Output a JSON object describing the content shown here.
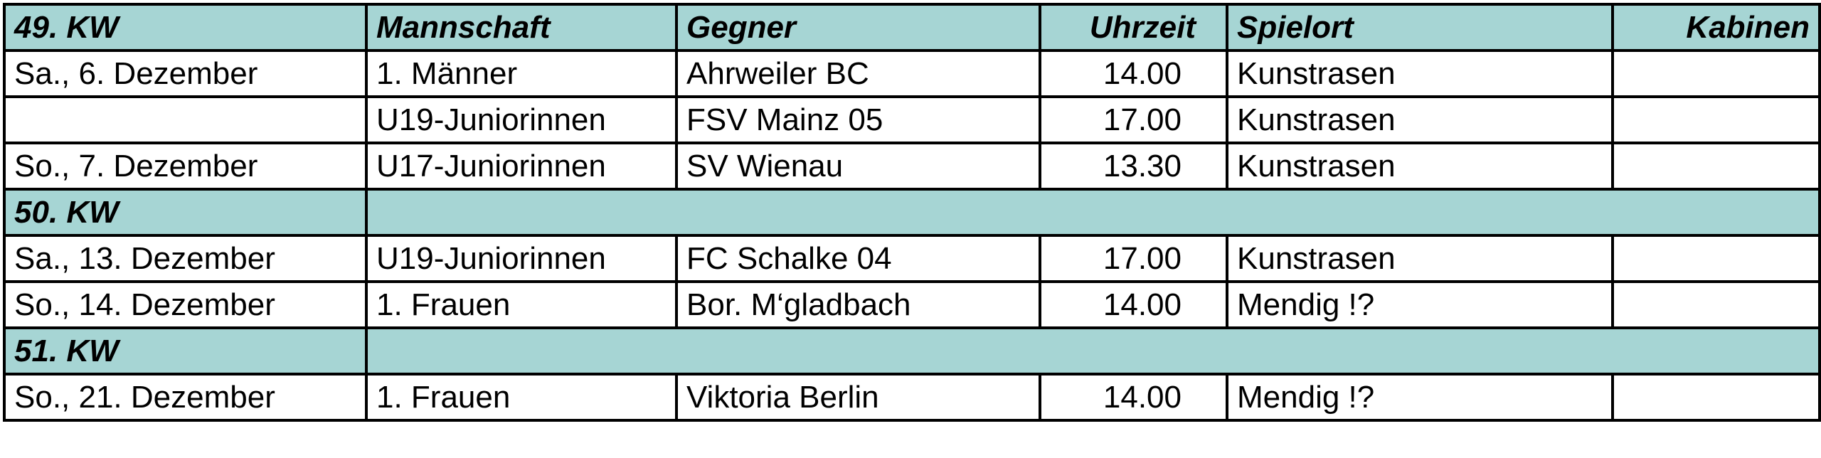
{
  "header": {
    "week": "49. KW",
    "columns": [
      "Mannschaft",
      "Gegner",
      "Uhrzeit",
      "Spielort",
      "Kabinen"
    ]
  },
  "rows": [
    {
      "date": "Sa., 6. Dezember",
      "team": "1. Männer",
      "opponent": "Ahrweiler BC",
      "time": "14.00",
      "venue": "Kunstrasen"
    },
    {
      "team": "U19-Juniorinnen",
      "opponent": "FSV Mainz 05",
      "time": "17.00",
      "venue": "Kunstrasen"
    },
    {
      "date": "So., 7. Dezember",
      "team": "U17-Juniorinnen",
      "opponent": "SV Wienau",
      "time": "13.30",
      "venue": "Kunstrasen"
    },
    {
      "week": "50. KW"
    },
    {
      "date": "Sa., 13. Dezember",
      "team": "U19-Juniorinnen",
      "opponent": "FC Schalke 04",
      "time": "17.00",
      "venue": "Kunstrasen"
    },
    {
      "date": "So., 14. Dezember",
      "team": "1. Frauen",
      "opponent": "Bor. M‘gladbach",
      "time": "14.00",
      "venue": "Mendig !?"
    },
    {
      "week": "51. KW"
    },
    {
      "date": "So., 21. Dezember",
      "team": "1. Frauen",
      "opponent": "Viktoria Berlin",
      "time": "14.00",
      "venue": "Mendig !?"
    }
  ]
}
